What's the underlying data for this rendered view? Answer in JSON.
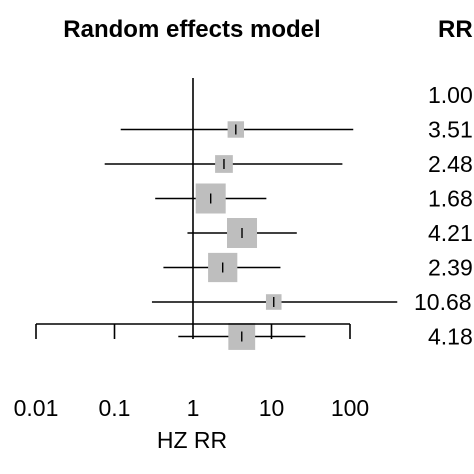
{
  "chart_data": {
    "type": "forest",
    "title": "Random effects model",
    "column_header": "RR",
    "xlabel": "HZ RR",
    "xscale": "log",
    "xlim": [
      0.01,
      100
    ],
    "xticks": [
      "0.01",
      "0.1",
      "1",
      "10",
      "100"
    ],
    "xtick_values": [
      0.01,
      0.1,
      1,
      10,
      100
    ],
    "reference_line": 1,
    "rows": [
      {
        "rr": 1.0,
        "label": "1.00",
        "lower": null,
        "upper": null,
        "weight": null
      },
      {
        "rr": 3.51,
        "label": "3.51",
        "lower": 0.12,
        "upper": 110,
        "weight": 0.3
      },
      {
        "rr": 2.48,
        "label": "2.48",
        "lower": 0.075,
        "upper": 80,
        "weight": 0.35
      },
      {
        "rr": 1.68,
        "label": "1.68",
        "lower": 0.33,
        "upper": 8.6,
        "weight": 1.0
      },
      {
        "rr": 4.21,
        "label": "4.21",
        "lower": 0.85,
        "upper": 21,
        "weight": 1.0
      },
      {
        "rr": 2.39,
        "label": "2.39",
        "lower": 0.42,
        "upper": 13,
        "weight": 0.95
      },
      {
        "rr": 10.68,
        "label": "10.68",
        "lower": 0.3,
        "upper": 400,
        "weight": 0.27
      },
      {
        "rr": 4.18,
        "label": "4.18",
        "lower": 0.65,
        "upper": 27,
        "weight": 0.8
      }
    ],
    "colors": {
      "box": "#bebebe",
      "line": "#000000"
    }
  }
}
